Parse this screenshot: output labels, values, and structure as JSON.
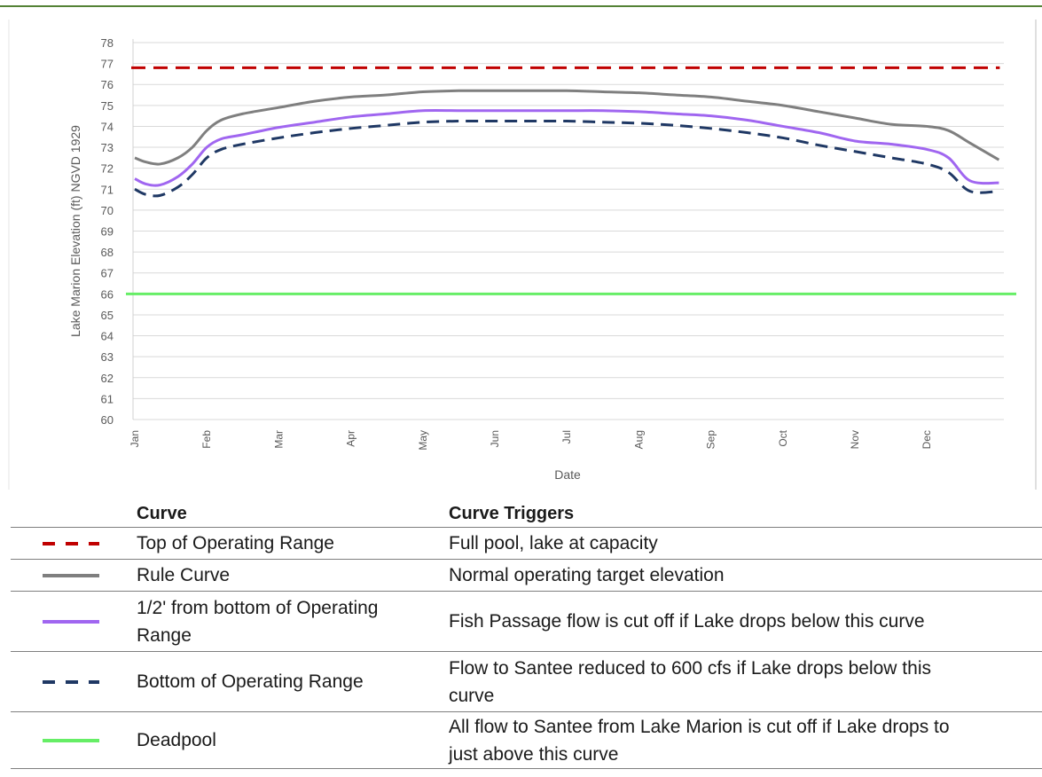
{
  "chart_data": {
    "type": "line",
    "title": "",
    "xlabel": "Date",
    "ylabel": "Lake Marion Elevation (ft) NGVD 1929",
    "ylim": [
      60,
      78
    ],
    "yticks": [
      60,
      61,
      62,
      63,
      64,
      65,
      66,
      67,
      68,
      69,
      70,
      71,
      72,
      73,
      74,
      75,
      76,
      77,
      78
    ],
    "categories": [
      "Jan",
      "Feb",
      "Mar",
      "Apr",
      "May",
      "Jun",
      "Jul",
      "Aug",
      "Sep",
      "Oct",
      "Nov",
      "Dec"
    ],
    "grid": "horizontal",
    "series": [
      {
        "key": "top",
        "color": "#c00000",
        "dash": "dashed",
        "x": [
          0,
          12
        ],
        "y": [
          76.8,
          76.8
        ]
      },
      {
        "key": "rule",
        "color": "#7f7f7f",
        "dash": "solid",
        "x": [
          0,
          0.15,
          0.35,
          0.6,
          0.8,
          1.0,
          1.2,
          1.5,
          2.0,
          2.5,
          3.0,
          3.5,
          4.0,
          4.5,
          5.0,
          5.5,
          6.0,
          6.5,
          7.0,
          7.5,
          8.0,
          8.5,
          9.0,
          9.5,
          10.0,
          10.5,
          11.0,
          11.3,
          11.6,
          12.0
        ],
        "y": [
          72.5,
          72.3,
          72.2,
          72.5,
          73.0,
          73.8,
          74.3,
          74.6,
          74.9,
          75.2,
          75.4,
          75.5,
          75.65,
          75.7,
          75.7,
          75.7,
          75.7,
          75.65,
          75.6,
          75.5,
          75.4,
          75.2,
          75.0,
          74.7,
          74.4,
          74.1,
          74.0,
          73.8,
          73.2,
          72.4
        ]
      },
      {
        "key": "half",
        "color": "#a066f0",
        "dash": "solid",
        "x": [
          0,
          0.15,
          0.35,
          0.6,
          0.8,
          1.0,
          1.2,
          1.5,
          2.0,
          2.5,
          3.0,
          3.5,
          4.0,
          4.5,
          5.0,
          5.5,
          6.0,
          6.5,
          7.0,
          7.5,
          8.0,
          8.5,
          9.0,
          9.5,
          10.0,
          10.5,
          11.0,
          11.3,
          11.6,
          12.0
        ],
        "y": [
          71.5,
          71.25,
          71.2,
          71.6,
          72.2,
          73.0,
          73.4,
          73.6,
          73.95,
          74.2,
          74.45,
          74.6,
          74.75,
          74.75,
          74.75,
          74.75,
          74.75,
          74.75,
          74.7,
          74.6,
          74.5,
          74.3,
          74.0,
          73.7,
          73.3,
          73.15,
          72.9,
          72.5,
          71.4,
          71.3
        ]
      },
      {
        "key": "bottom",
        "color": "#1f3864",
        "dash": "dashed",
        "x": [
          0,
          0.15,
          0.35,
          0.6,
          0.8,
          1.0,
          1.2,
          1.5,
          2.0,
          2.5,
          3.0,
          3.5,
          4.0,
          4.5,
          5.0,
          5.5,
          6.0,
          6.5,
          7.0,
          7.5,
          8.0,
          8.5,
          9.0,
          9.5,
          10.0,
          10.5,
          11.0,
          11.3,
          11.6,
          12.0
        ],
        "y": [
          71.0,
          70.75,
          70.7,
          71.1,
          71.7,
          72.5,
          72.9,
          73.15,
          73.45,
          73.7,
          73.9,
          74.05,
          74.2,
          74.25,
          74.25,
          74.25,
          74.25,
          74.2,
          74.15,
          74.05,
          73.9,
          73.7,
          73.45,
          73.1,
          72.8,
          72.5,
          72.2,
          71.8,
          70.9,
          70.9
        ]
      },
      {
        "key": "dead",
        "color": "#66ee66",
        "dash": "solid",
        "x": [
          0,
          12.25
        ],
        "y": [
          66,
          66
        ]
      }
    ]
  },
  "legend_table": {
    "header_curve": "Curve",
    "header_triggers": "Curve Triggers",
    "rows": [
      {
        "key": "top",
        "name_lines": [
          "Top of Operating Range"
        ],
        "trigger_lines": [
          "Full pool, lake at capacity"
        ],
        "swatch_color": "#c00000",
        "swatch_dash": "dashed"
      },
      {
        "key": "rule",
        "name_lines": [
          "Rule Curve"
        ],
        "trigger_lines": [
          "Normal operating target elevation"
        ],
        "swatch_color": "#7f7f7f",
        "swatch_dash": "solid"
      },
      {
        "key": "half",
        "name_lines": [
          "1/2' from bottom of Operating",
          "Range"
        ],
        "trigger_lines": [
          "Fish Passage flow is cut off if Lake drops below this curve"
        ],
        "swatch_color": "#a066f0",
        "swatch_dash": "solid"
      },
      {
        "key": "bottom",
        "name_lines": [
          "Bottom of Operating Range"
        ],
        "trigger_lines": [
          "Flow to Santee reduced to 600 cfs if Lake drops below this",
          "curve"
        ],
        "swatch_color": "#1f3864",
        "swatch_dash": "dashed"
      },
      {
        "key": "dead",
        "name_lines": [
          "Deadpool"
        ],
        "trigger_lines": [
          "All flow to Santee from Lake Marion is cut off if Lake drops to",
          "just above this curve"
        ],
        "swatch_color": "#66ee66",
        "swatch_dash": "solid"
      }
    ]
  },
  "colors": {
    "frame_top": "#548235",
    "grid": "#d9d9d9",
    "axis_text": "#595959",
    "border": "#7f7f7f"
  }
}
